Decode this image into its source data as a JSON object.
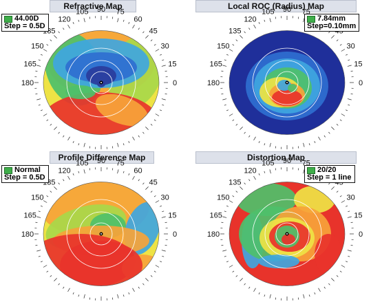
{
  "panels": [
    {
      "title": "Refractive Map",
      "legend_value": "44.00D",
      "legend_step": "Step = 0.5D",
      "legend_color": "#3fae4a",
      "palette": [
        "#2a3c9c",
        "#2f6fd0",
        "#3fa6df",
        "#4ec06a",
        "#a8d84a",
        "#eee345",
        "#f6a33a",
        "#e8332b"
      ]
    },
    {
      "title": "Local ROC (Radius) Map",
      "legend_value": "7.84mm",
      "legend_step": "Step=0.10mm",
      "legend_color": "#3fae4a",
      "palette": [
        "#1f2f9a",
        "#2f6fd0",
        "#3fa6df",
        "#4ec06a",
        "#eee345",
        "#f6a33a",
        "#e8332b"
      ]
    },
    {
      "title": "Profile Difference Map",
      "legend_value": "Normal",
      "legend_step": "Step = 0.5D",
      "legend_color": "#3fae4a",
      "palette": [
        "#3fa6df",
        "#4ec06a",
        "#a8d84a",
        "#eee345",
        "#f6a33a",
        "#e8332b"
      ]
    },
    {
      "title": "Distortion Map",
      "legend_value": "20/20",
      "legend_step": "Step = 1 line",
      "legend_color": "#3fae4a",
      "palette": [
        "#2f6fd0",
        "#3fa6df",
        "#4ec06a",
        "#eee345",
        "#f6a33a",
        "#e8332b"
      ]
    }
  ],
  "axis_labels": [
    "0",
    "15",
    "30",
    "45",
    "60",
    "75",
    "90",
    "105",
    "120",
    "135",
    "150",
    "165",
    "180"
  ]
}
